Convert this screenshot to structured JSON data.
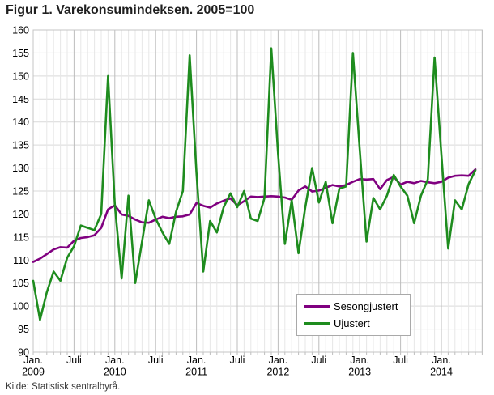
{
  "title": "Figur 1. Varekonsumindeksen. 2005=100",
  "source": "Kilde: Statistisk sentralbyrå.",
  "legend": {
    "items": [
      {
        "label": "Sesongjustert",
        "color": "#800080"
      },
      {
        "label": "Ujustert",
        "color": "#1e8c1e"
      }
    ]
  },
  "chart_data": {
    "type": "line",
    "title": "Figur 1. Varekonsumindeksen. 2005=100",
    "x_unit": "month",
    "x_start": "2009-01",
    "x_end": "2014-06",
    "ylim": [
      90,
      160
    ],
    "y_tick_step": 5,
    "grid": "on",
    "legend_position": "inside-lower-right",
    "x_tick_labels": [
      {
        "index": 0,
        "top": "Jan.",
        "bottom": "2009"
      },
      {
        "index": 6,
        "top": "Juli"
      },
      {
        "index": 12,
        "top": "Jan.",
        "bottom": "2010"
      },
      {
        "index": 18,
        "top": "Juli"
      },
      {
        "index": 24,
        "top": "Jan.",
        "bottom": "2011"
      },
      {
        "index": 30,
        "top": "Juli"
      },
      {
        "index": 36,
        "top": "Jan.",
        "bottom": "2012"
      },
      {
        "index": 42,
        "top": "Juli"
      },
      {
        "index": 48,
        "top": "Jan.",
        "bottom": "2013"
      },
      {
        "index": 54,
        "top": "Juli"
      },
      {
        "index": 60,
        "top": "Jan.",
        "bottom": "2014"
      }
    ],
    "series": [
      {
        "name": "Sesongjustert",
        "color": "#800080",
        "values": [
          109.6,
          110.3,
          111.3,
          112.3,
          112.8,
          112.7,
          114.2,
          114.8,
          115.0,
          115.4,
          117.0,
          121.0,
          121.9,
          119.9,
          119.6,
          118.8,
          118.2,
          118.1,
          118.8,
          119.4,
          119.1,
          119.4,
          119.5,
          119.9,
          122.4,
          121.8,
          121.4,
          122.3,
          122.9,
          123.4,
          121.9,
          122.8,
          123.8,
          123.7,
          123.8,
          123.9,
          123.8,
          123.6,
          123.1,
          125.1,
          126.0,
          124.9,
          125.1,
          125.7,
          126.3,
          126.0,
          126.3,
          127.0,
          127.6,
          127.5,
          127.6,
          125.4,
          127.4,
          128.1,
          126.4,
          127.0,
          126.7,
          127.2,
          126.9,
          126.7,
          127.0,
          127.9,
          128.3,
          128.4,
          128.3,
          129.7
        ]
      },
      {
        "name": "Ujustert",
        "color": "#1e8c1e",
        "values": [
          105.5,
          97.0,
          103.0,
          107.5,
          105.5,
          110.5,
          113.0,
          117.5,
          117.0,
          116.5,
          120.0,
          150.0,
          122.0,
          106.0,
          124.0,
          105.0,
          114.0,
          123.0,
          119.0,
          116.0,
          113.5,
          120.5,
          125.0,
          154.5,
          129.0,
          107.5,
          118.5,
          116.0,
          121.5,
          124.5,
          121.5,
          125.0,
          119.0,
          118.5,
          123.5,
          156.0,
          133.0,
          113.5,
          123.0,
          111.5,
          121.5,
          130.0,
          122.5,
          127.0,
          118.0,
          125.5,
          126.0,
          155.0,
          134.0,
          114.0,
          123.5,
          121.0,
          124.0,
          128.5,
          126.0,
          124.0,
          118.0,
          124.0,
          127.5,
          154.0,
          133.0,
          112.5,
          123.0,
          121.0,
          126.5,
          129.5
        ]
      }
    ]
  }
}
